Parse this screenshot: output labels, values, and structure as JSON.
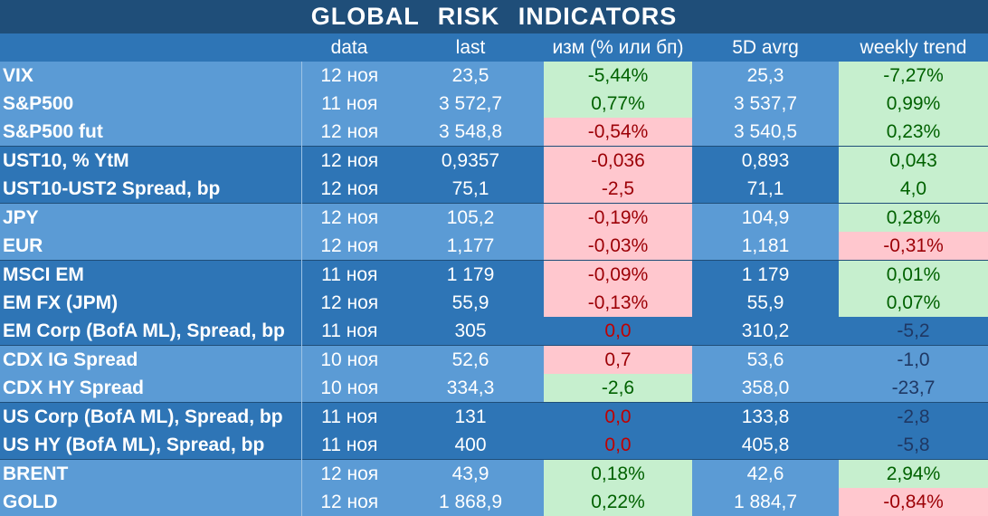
{
  "title": "GLOBAL   RISK   INDICATORS",
  "columns": [
    "",
    "data",
    "last",
    "изм (% или бп)",
    "5D avrg",
    "weekly trend"
  ],
  "rows": [
    {
      "name": "VIX",
      "date": "12 ноя",
      "last": "23,5",
      "chg": "-5,44%",
      "chg_state": "pos",
      "avg": "25,3",
      "wk": "-7,27%",
      "wk_state": "pos",
      "group": "light",
      "sep": false
    },
    {
      "name": "S&P500",
      "date": "11 ноя",
      "last": "3 572,7",
      "chg": "0,77%",
      "chg_state": "pos",
      "avg": "3 537,7",
      "wk": "0,99%",
      "wk_state": "pos",
      "group": "light",
      "sep": false
    },
    {
      "name": "S&P500 fut",
      "date": "12 ноя",
      "last": "3 548,8",
      "chg": "-0,54%",
      "chg_state": "neg",
      "avg": "3 540,5",
      "wk": "0,23%",
      "wk_state": "pos",
      "group": "light",
      "sep": false
    },
    {
      "name": "UST10, % YtM",
      "date": "12 ноя",
      "last": "0,9357",
      "chg": "-0,036",
      "chg_state": "neg",
      "avg": "0,893",
      "wk": "0,043",
      "wk_state": "pos",
      "group": "dark",
      "sep": true
    },
    {
      "name": "UST10-UST2 Spread, bp",
      "date": "12 ноя",
      "last": "75,1",
      "chg": "-2,5",
      "chg_state": "neg",
      "avg": "71,1",
      "wk": "4,0",
      "wk_state": "pos",
      "group": "dark",
      "sep": false
    },
    {
      "name": "JPY",
      "date": "12 ноя",
      "last": "105,2",
      "chg": "-0,19%",
      "chg_state": "neg",
      "avg": "104,9",
      "wk": "0,28%",
      "wk_state": "pos",
      "group": "light",
      "sep": true
    },
    {
      "name": "EUR",
      "date": "12 ноя",
      "last": "1,177",
      "chg": "-0,03%",
      "chg_state": "neg",
      "avg": "1,181",
      "wk": "-0,31%",
      "wk_state": "neg",
      "group": "light",
      "sep": false
    },
    {
      "name": "MSCI EM",
      "date": "11 ноя",
      "last": "1 179",
      "chg": "-0,09%",
      "chg_state": "neg",
      "avg": "1 179",
      "wk": "0,01%",
      "wk_state": "pos",
      "group": "dark",
      "sep": true
    },
    {
      "name": "EM FX (JPM)",
      "date": "12 ноя",
      "last": "55,9",
      "chg": "-0,13%",
      "chg_state": "neg",
      "avg": "55,9",
      "wk": "0,07%",
      "wk_state": "pos",
      "group": "dark",
      "sep": false
    },
    {
      "name": "EM Corp (BofA ML), Spread, bp",
      "date": "11 ноя",
      "last": "305",
      "chg": "0,0",
      "chg_state": "neu",
      "avg": "310,2",
      "wk": "-5,2",
      "wk_state": "neu",
      "group": "dark",
      "sep": false
    },
    {
      "name": "CDX IG Spread",
      "date": "10 ноя",
      "last": "52,6",
      "chg": "0,7",
      "chg_state": "neg",
      "avg": "53,6",
      "wk": "-1,0",
      "wk_state": "neu",
      "group": "light",
      "sep": true
    },
    {
      "name": "CDX HY Spread",
      "date": "10 ноя",
      "last": "334,3",
      "chg": "-2,6",
      "chg_state": "pos",
      "avg": "358,0",
      "wk": "-23,7",
      "wk_state": "neu",
      "group": "light",
      "sep": false
    },
    {
      "name": "US Corp (BofA ML), Spread, bp",
      "date": "11 ноя",
      "last": "131",
      "chg": "0,0",
      "chg_state": "neu",
      "avg": "133,8",
      "wk": "-2,8",
      "wk_state": "neu",
      "group": "dark",
      "sep": true
    },
    {
      "name": "US HY (BofA ML), Spread, bp",
      "date": "11 ноя",
      "last": "400",
      "chg": "0,0",
      "chg_state": "neu",
      "avg": "405,8",
      "wk": "-5,8",
      "wk_state": "neu",
      "group": "dark",
      "sep": false
    },
    {
      "name": "BRENT",
      "date": "12 ноя",
      "last": "43,9",
      "chg": "0,18%",
      "chg_state": "pos",
      "avg": "42,6",
      "wk": "2,94%",
      "wk_state": "pos",
      "group": "light",
      "sep": true
    },
    {
      "name": "GOLD",
      "date": "12 ноя",
      "last": "1 868,9",
      "chg": "0,22%",
      "chg_state": "pos",
      "avg": "1 884,7",
      "wk": "-0,84%",
      "wk_state": "neg",
      "group": "light",
      "sep": false
    }
  ]
}
